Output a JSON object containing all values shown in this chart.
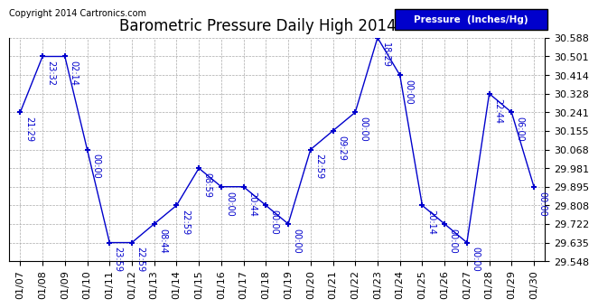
{
  "title": "Barometric Pressure Daily High 20140131",
  "copyright": "Copyright 2014 Cartronics.com",
  "legend_label": "Pressure  (Inches/Hg)",
  "dates": [
    "01/07",
    "01/08",
    "01/09",
    "01/10",
    "01/11",
    "01/12",
    "01/13",
    "01/14",
    "01/15",
    "01/16",
    "01/17",
    "01/18",
    "01/19",
    "01/20",
    "01/21",
    "01/22",
    "01/23",
    "01/24",
    "01/25",
    "01/26",
    "01/27",
    "01/28",
    "01/29",
    "01/30"
  ],
  "values": [
    30.241,
    30.501,
    30.501,
    30.068,
    29.635,
    29.635,
    29.722,
    29.808,
    29.981,
    29.895,
    29.895,
    29.808,
    29.722,
    30.068,
    30.155,
    30.241,
    30.588,
    30.414,
    29.808,
    29.722,
    29.635,
    30.328,
    30.241,
    29.895
  ],
  "time_labels": [
    "21:29",
    "23:32",
    "02:14",
    "00:00",
    "23:59",
    "22:59",
    "08:44",
    "22:59",
    "08:59",
    "00:00",
    "20:44",
    "00:00",
    "00:00",
    "22:59",
    "09:29",
    "00:00",
    "18:29",
    "00:00",
    "20:14",
    "00:00",
    "00:00",
    "22:44",
    "06:00",
    "00:00"
  ],
  "ylim_min": 29.548,
  "ylim_max": 30.588,
  "yticks": [
    29.548,
    29.635,
    29.722,
    29.808,
    29.895,
    29.981,
    30.068,
    30.155,
    30.241,
    30.328,
    30.414,
    30.501,
    30.588
  ],
  "line_color": "#0000cc",
  "marker_color": "#0000cc",
  "background_color": "#ffffff",
  "grid_color": "#aaaaaa",
  "title_fontsize": 12,
  "tick_fontsize": 8,
  "annot_fontsize": 7
}
